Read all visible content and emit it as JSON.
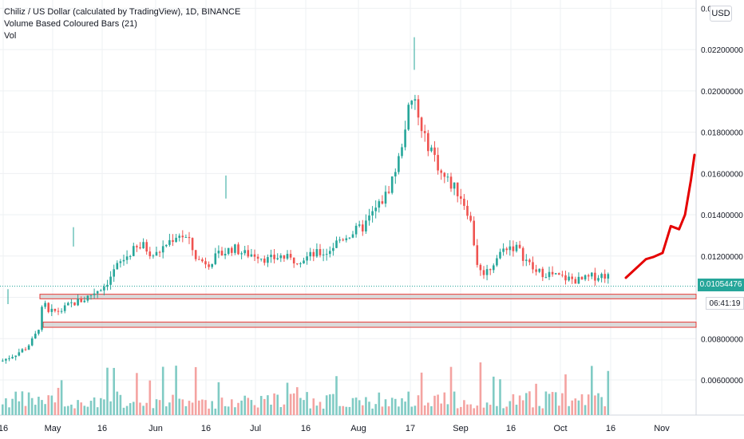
{
  "legend": {
    "title": "Chiliz / US Dollar (calculated by TradingView), 1D, BINANCE",
    "indicator": "Volume Based Coloured Bars (21)",
    "volume_label": "Vol"
  },
  "currency_button": "USD",
  "last_price_label": "0.01054476",
  "countdown_label": "06:41:19",
  "colors": {
    "up": "#26a69a",
    "down": "#ef5350",
    "vol_up": "#80cbc4",
    "vol_down": "#f4a3a1",
    "zone_fill": "#cccccc",
    "zone_border": "#e53935",
    "drawing": "#e50000",
    "grid": "#eef0f3"
  },
  "chart_data": {
    "type": "candlestick",
    "symbol": "CHZUSD",
    "timeframe": "1D",
    "y_axis": {
      "range": [
        0.0043,
        0.0244
      ],
      "tick_labels": [
        "0.00600000",
        "0.00800000",
        "0.01000000",
        "0.01200000",
        "0.01400000",
        "0.01600000",
        "0.01800000",
        "0.02000000",
        "0.02200000",
        "0.024"
      ]
    },
    "x_axis": {
      "tick_labels": [
        "16",
        "May",
        "16",
        "Jun",
        "16",
        "Jul",
        "16",
        "Aug",
        "17",
        "Sep",
        "16",
        "Oct",
        "16",
        "Nov"
      ]
    },
    "support_zones": [
      {
        "low": 0.00993,
        "high": 0.01015
      },
      {
        "low": 0.00855,
        "high": 0.0088
      }
    ],
    "projection_path": [
      [
        0.01075,
        0.01095
      ],
      [
        0.01092,
        0.01185
      ],
      [
        0.01098,
        0.01195
      ],
      [
        0.01106,
        0.01215
      ],
      [
        0.01113,
        0.01345
      ],
      [
        0.0112,
        0.0133
      ],
      [
        0.01125,
        0.014
      ],
      [
        0.0113,
        0.0157
      ],
      [
        0.01133,
        0.0169
      ]
    ],
    "key_points": [
      {
        "date": "2020-05-07",
        "high": 0.0134
      },
      {
        "date": "2020-08-17",
        "high": 0.0226
      },
      {
        "date": "2020-08-19",
        "close": 0.0175
      },
      {
        "date": "2020-09-06",
        "low": 0.01
      },
      {
        "date": "2020-10-19",
        "close": 0.01054476
      }
    ]
  }
}
